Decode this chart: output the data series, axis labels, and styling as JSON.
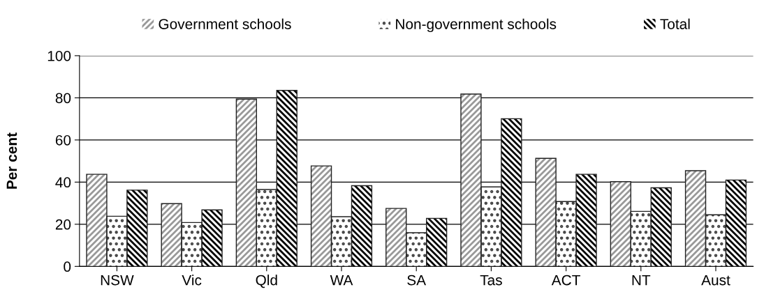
{
  "chart_data": {
    "type": "bar",
    "ylabel": "Per cent",
    "categories": [
      "NSW",
      "Vic",
      "Qld",
      "WA",
      "SA",
      "Tas",
      "ACT",
      "NT",
      "Aust"
    ],
    "series": [
      {
        "name": "Government schools",
        "color": "#999999",
        "values": [
          43.7,
          29.8,
          79.4,
          47.7,
          27.5,
          81.8,
          51.3,
          40.2,
          45.4
        ]
      },
      {
        "name": "Non-government schools",
        "color": "#444444",
        "values": [
          23.8,
          20.8,
          36.5,
          23.6,
          16.0,
          37.7,
          30.8,
          26.1,
          24.5
        ]
      },
      {
        "name": "Total",
        "color": "#000000",
        "values": [
          36.2,
          26.8,
          83.5,
          38.3,
          22.8,
          70.1,
          43.7,
          37.3,
          41.0
        ]
      }
    ],
    "ylim": [
      0,
      100
    ],
    "yticks": [
      0,
      20,
      40,
      60,
      80,
      100
    ],
    "grid": "y",
    "legend": "top"
  }
}
